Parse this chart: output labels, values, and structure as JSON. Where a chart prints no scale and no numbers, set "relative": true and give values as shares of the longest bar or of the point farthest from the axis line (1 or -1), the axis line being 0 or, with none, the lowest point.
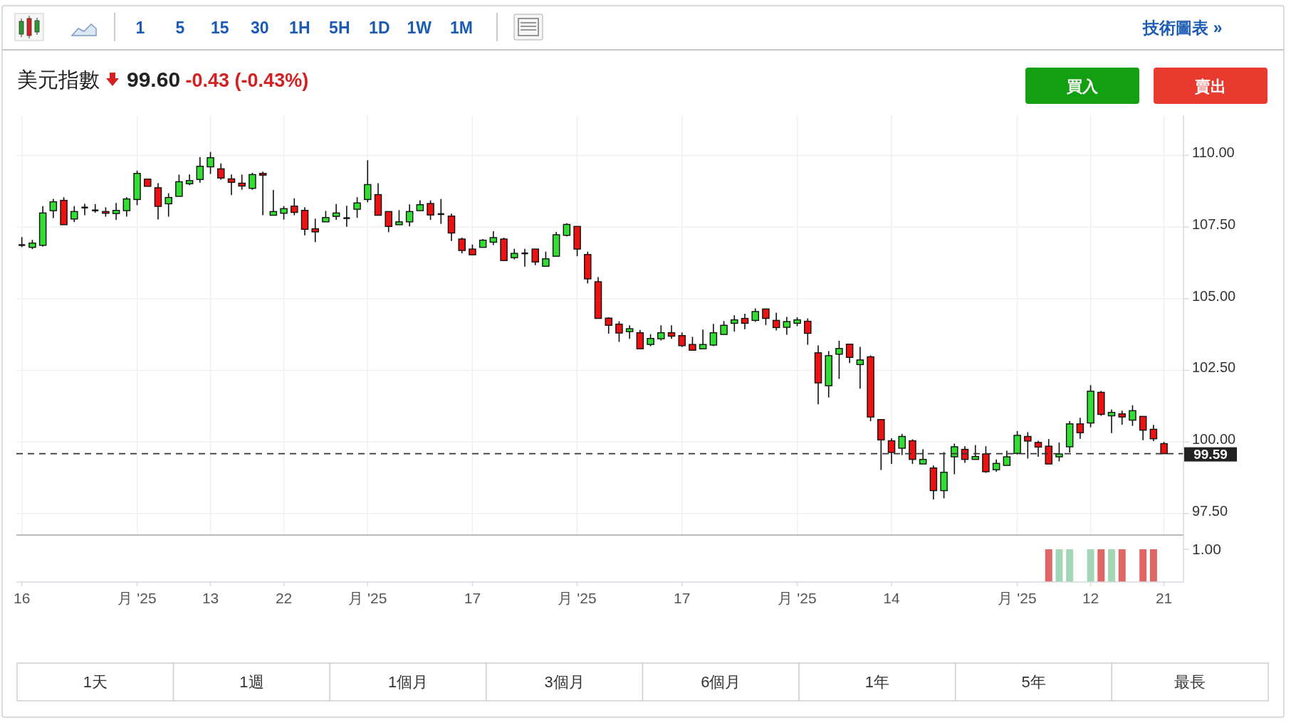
{
  "chart_data": [
    {
      "type": "candlestick",
      "title": "美元指數",
      "subtitle": "99.60 -0.43 (-0.43%)",
      "categories": [
        "16",
        null,
        null,
        null,
        null,
        null,
        null,
        null,
        null,
        null,
        null,
        "月 '25",
        null,
        null,
        null,
        null,
        null,
        null,
        "13",
        null,
        null,
        null,
        null,
        null,
        null,
        "22",
        null,
        null,
        null,
        null,
        null,
        null,
        null,
        "月 '25",
        null,
        null,
        null,
        null,
        null,
        null,
        null,
        null,
        null,
        "17",
        null,
        null,
        null,
        null,
        null,
        null,
        null,
        null,
        null,
        "月 '25",
        null,
        null,
        null,
        null,
        null,
        null,
        null,
        null,
        null,
        "17",
        null,
        null,
        null,
        null,
        null,
        null,
        null,
        null,
        null,
        null,
        "月 '25",
        null,
        null,
        null,
        null,
        null,
        null,
        null,
        null,
        "14",
        null,
        null,
        null,
        null,
        null,
        null,
        null,
        null,
        null,
        null,
        null,
        "月 '25",
        null,
        null,
        null,
        null,
        null,
        null,
        "12",
        null,
        null,
        null,
        null,
        null,
        null,
        "21"
      ],
      "ohlc": [
        [
          106.87,
          107.15,
          106.8,
          106.87
        ],
        [
          106.79,
          107.05,
          106.73,
          106.94
        ],
        [
          106.86,
          108.23,
          106.81,
          107.99
        ],
        [
          108.07,
          108.48,
          107.81,
          108.38
        ],
        [
          108.43,
          108.54,
          107.58,
          107.58
        ],
        [
          107.78,
          108.23,
          107.67,
          108.04
        ],
        [
          108.18,
          108.31,
          107.91,
          108.18
        ],
        [
          108.08,
          108.3,
          108.0,
          108.08
        ],
        [
          108.04,
          108.19,
          107.86,
          107.98
        ],
        [
          107.97,
          108.34,
          107.75,
          108.08
        ],
        [
          108.07,
          108.54,
          107.86,
          108.48
        ],
        [
          108.46,
          109.47,
          108.26,
          109.37
        ],
        [
          109.17,
          109.17,
          108.92,
          108.92
        ],
        [
          108.87,
          109.03,
          107.76,
          108.22
        ],
        [
          108.31,
          108.68,
          107.86,
          108.53
        ],
        [
          108.57,
          109.33,
          108.57,
          109.08
        ],
        [
          109.01,
          109.33,
          108.96,
          109.12
        ],
        [
          109.16,
          109.94,
          109.05,
          109.62
        ],
        [
          109.6,
          110.12,
          109.35,
          109.92
        ],
        [
          109.53,
          109.72,
          109.15,
          109.21
        ],
        [
          109.18,
          109.33,
          108.61,
          109.06
        ],
        [
          109.03,
          109.33,
          108.8,
          108.93
        ],
        [
          108.85,
          109.39,
          108.8,
          109.33
        ],
        [
          109.37,
          109.43,
          107.91,
          109.31
        ],
        [
          107.91,
          108.79,
          107.91,
          108.04
        ],
        [
          107.98,
          108.23,
          107.76,
          108.14
        ],
        [
          108.23,
          108.5,
          107.91,
          108.01
        ],
        [
          108.08,
          108.19,
          107.21,
          107.42
        ],
        [
          107.44,
          107.79,
          106.97,
          107.33
        ],
        [
          107.68,
          108.06,
          107.68,
          107.83
        ],
        [
          107.87,
          108.3,
          107.75,
          107.99
        ],
        [
          107.81,
          108.24,
          107.51,
          107.81
        ],
        [
          108.12,
          108.54,
          107.82,
          108.34
        ],
        [
          108.46,
          109.83,
          108.36,
          108.98
        ],
        [
          108.63,
          109.03,
          107.91,
          107.91
        ],
        [
          108.04,
          108.04,
          107.32,
          107.52
        ],
        [
          107.58,
          108.09,
          107.58,
          107.68
        ],
        [
          107.68,
          108.29,
          107.52,
          108.04
        ],
        [
          108.07,
          108.43,
          108.07,
          108.28
        ],
        [
          108.32,
          108.43,
          107.75,
          107.92
        ],
        [
          107.95,
          108.48,
          107.61,
          107.95
        ],
        [
          107.88,
          107.97,
          107.01,
          107.29
        ],
        [
          107.08,
          107.13,
          106.58,
          106.68
        ],
        [
          106.73,
          106.89,
          106.53,
          106.53
        ],
        [
          106.79,
          107.08,
          106.79,
          107.04
        ],
        [
          106.97,
          107.35,
          106.87,
          107.13
        ],
        [
          107.08,
          107.13,
          106.33,
          106.33
        ],
        [
          106.43,
          106.74,
          106.37,
          106.58
        ],
        [
          106.58,
          106.74,
          106.12,
          106.58
        ],
        [
          106.73,
          106.73,
          106.17,
          106.28
        ],
        [
          106.13,
          106.64,
          106.13,
          106.39
        ],
        [
          106.48,
          107.33,
          106.48,
          107.23
        ],
        [
          107.21,
          107.63,
          107.17,
          107.59
        ],
        [
          107.52,
          107.52,
          106.48,
          106.73
        ],
        [
          106.54,
          106.64,
          105.53,
          105.69
        ],
        [
          105.59,
          105.75,
          104.31,
          104.31
        ],
        [
          104.32,
          104.35,
          103.78,
          104.07
        ],
        [
          104.11,
          104.21,
          103.49,
          103.8
        ],
        [
          103.85,
          104.07,
          103.6,
          103.95
        ],
        [
          103.81,
          103.91,
          103.25,
          103.25
        ],
        [
          103.4,
          103.76,
          103.34,
          103.61
        ],
        [
          103.6,
          104.07,
          103.54,
          103.81
        ],
        [
          103.81,
          104.07,
          103.6,
          103.69
        ],
        [
          103.71,
          103.82,
          103.31,
          103.36
        ],
        [
          103.4,
          103.67,
          103.2,
          103.2
        ],
        [
          103.25,
          103.92,
          103.25,
          103.4
        ],
        [
          103.38,
          104.12,
          103.34,
          103.81
        ],
        [
          103.75,
          104.22,
          103.75,
          104.07
        ],
        [
          104.14,
          104.42,
          103.85,
          104.26
        ],
        [
          104.31,
          104.47,
          103.93,
          104.14
        ],
        [
          104.24,
          104.66,
          104.19,
          104.55
        ],
        [
          104.64,
          104.64,
          104.08,
          104.31
        ],
        [
          104.24,
          104.51,
          103.89,
          103.99
        ],
        [
          104.0,
          104.36,
          103.74,
          104.2
        ],
        [
          104.14,
          104.35,
          104.04,
          104.26
        ],
        [
          104.21,
          104.31,
          103.39,
          103.79
        ],
        [
          103.11,
          103.37,
          101.31,
          102.06
        ],
        [
          101.96,
          103.17,
          101.55,
          103.01
        ],
        [
          103.06,
          103.53,
          102.2,
          103.26
        ],
        [
          103.41,
          103.41,
          102.75,
          102.95
        ],
        [
          102.7,
          103.32,
          101.86,
          102.86
        ],
        [
          102.97,
          103.02,
          100.72,
          100.87
        ],
        [
          100.78,
          100.78,
          99.02,
          100.07
        ],
        [
          100.04,
          100.13,
          99.23,
          99.63
        ],
        [
          99.78,
          100.28,
          99.54,
          100.19
        ],
        [
          100.04,
          100.09,
          99.23,
          99.39
        ],
        [
          99.23,
          99.74,
          99.23,
          99.39
        ],
        [
          99.09,
          99.18,
          97.99,
          98.3
        ],
        [
          98.3,
          99.64,
          98.03,
          98.94
        ],
        [
          99.48,
          99.94,
          98.87,
          99.83
        ],
        [
          99.74,
          99.85,
          99.27,
          99.39
        ],
        [
          99.39,
          99.89,
          99.39,
          99.49
        ],
        [
          99.58,
          99.85,
          98.92,
          98.96
        ],
        [
          99.03,
          99.39,
          98.96,
          99.25
        ],
        [
          99.18,
          99.69,
          99.18,
          99.48
        ],
        [
          99.6,
          100.38,
          99.56,
          100.23
        ],
        [
          100.19,
          100.34,
          99.42,
          100.03
        ],
        [
          99.98,
          100.04,
          99.48,
          99.82
        ],
        [
          99.85,
          100.1,
          99.23,
          99.23
        ],
        [
          99.48,
          99.98,
          99.32,
          99.58
        ],
        [
          99.83,
          100.73,
          99.63,
          100.63
        ],
        [
          100.63,
          100.84,
          100.11,
          100.32
        ],
        [
          100.66,
          101.98,
          100.51,
          101.77
        ],
        [
          101.73,
          101.78,
          100.91,
          100.96
        ],
        [
          100.91,
          101.13,
          100.31,
          101.03
        ],
        [
          100.98,
          101.09,
          100.6,
          100.87
        ],
        [
          100.76,
          101.28,
          100.56,
          101.09
        ],
        [
          100.89,
          100.89,
          100.06,
          100.41
        ],
        [
          100.44,
          100.59,
          100.03,
          100.11
        ],
        [
          99.94,
          100.0,
          99.58,
          99.59
        ]
      ],
      "ylim": [
        96.75,
        111.4
      ],
      "yticks": [
        {
          "value": 97.5,
          "label": "97.50"
        },
        {
          "value": 100,
          "label": "100.00"
        },
        {
          "value": 102.5,
          "label": "102.50"
        },
        {
          "value": 105,
          "label": "105.00"
        },
        {
          "value": 107.5,
          "label": "107.50"
        },
        {
          "value": 110,
          "label": "110.00"
        }
      ],
      "ref_lines": [
        {
          "axis": "y",
          "value": 99.59,
          "label": "99.59",
          "line_style": "dashed",
          "color": "#333333"
        }
      ],
      "grid": true,
      "annotations": [
        "1 5 15 30 1H 5H 1D 1W 1M",
        "技術圖表 »",
        "買入",
        "賣出",
        "1天",
        "1週",
        "1個月",
        "3個月",
        "6個月",
        "1年",
        "5年",
        "最長"
      ]
    },
    {
      "type": "bar",
      "relative": true,
      "categories": [
        null,
        null,
        null,
        null,
        null,
        null,
        null,
        null,
        null,
        null,
        null,
        null,
        null,
        null,
        null,
        null,
        null,
        null,
        null,
        null,
        null,
        null,
        null,
        null,
        null,
        null,
        null,
        null,
        null,
        null,
        null,
        null,
        null,
        null,
        null,
        null,
        null,
        null,
        null,
        null,
        null,
        null,
        null,
        null,
        null,
        null,
        null,
        null,
        null,
        null,
        null,
        null,
        null,
        null,
        null,
        null,
        null,
        null,
        null,
        null,
        null,
        null,
        null,
        null,
        null,
        null,
        null,
        null,
        null,
        null,
        null,
        null,
        null,
        null,
        null,
        null,
        null,
        null,
        null,
        null,
        null,
        null,
        null,
        null,
        null,
        null,
        null,
        null,
        null,
        null,
        null,
        null,
        null,
        null,
        null,
        null,
        null,
        null,
        null,
        null,
        null,
        null,
        null,
        null,
        null,
        null,
        null,
        null,
        null,
        null
      ],
      "values": [
        null,
        null,
        null,
        null,
        null,
        null,
        null,
        null,
        null,
        null,
        null,
        null,
        null,
        null,
        null,
        null,
        null,
        null,
        null,
        null,
        null,
        null,
        null,
        null,
        null,
        null,
        null,
        null,
        null,
        null,
        null,
        null,
        null,
        null,
        null,
        null,
        null,
        null,
        null,
        null,
        null,
        null,
        null,
        null,
        null,
        null,
        null,
        null,
        null,
        null,
        null,
        null,
        null,
        null,
        null,
        null,
        null,
        null,
        null,
        null,
        null,
        null,
        null,
        null,
        null,
        null,
        null,
        null,
        null,
        null,
        null,
        null,
        null,
        null,
        null,
        null,
        null,
        null,
        null,
        null,
        null,
        null,
        null,
        null,
        null,
        null,
        null,
        null,
        null,
        null,
        null,
        null,
        null,
        null,
        null,
        null,
        null,
        null,
        1,
        1,
        1,
        null,
        1,
        1,
        1,
        1,
        null,
        1,
        1,
        null
      ],
      "colors": [
        null,
        null,
        null,
        null,
        null,
        null,
        null,
        null,
        null,
        null,
        null,
        null,
        null,
        null,
        null,
        null,
        null,
        null,
        null,
        null,
        null,
        null,
        null,
        null,
        null,
        null,
        null,
        null,
        null,
        null,
        null,
        null,
        null,
        null,
        null,
        null,
        null,
        null,
        null,
        null,
        null,
        null,
        null,
        null,
        null,
        null,
        null,
        null,
        null,
        null,
        null,
        null,
        null,
        null,
        null,
        null,
        null,
        null,
        null,
        null,
        null,
        null,
        null,
        null,
        null,
        null,
        null,
        null,
        null,
        null,
        null,
        null,
        null,
        null,
        null,
        null,
        null,
        null,
        null,
        null,
        null,
        null,
        null,
        null,
        null,
        null,
        null,
        null,
        null,
        null,
        null,
        null,
        null,
        null,
        null,
        null,
        null,
        null,
        "#e06666",
        "#a3d6b4",
        "#a3d6b4",
        null,
        "#a3d6b4",
        "#e06666",
        "#a3d6b4",
        "#e06666",
        null,
        "#e06666",
        "#e06666",
        null
      ],
      "annotations": [
        "1.00"
      ]
    }
  ]
}
